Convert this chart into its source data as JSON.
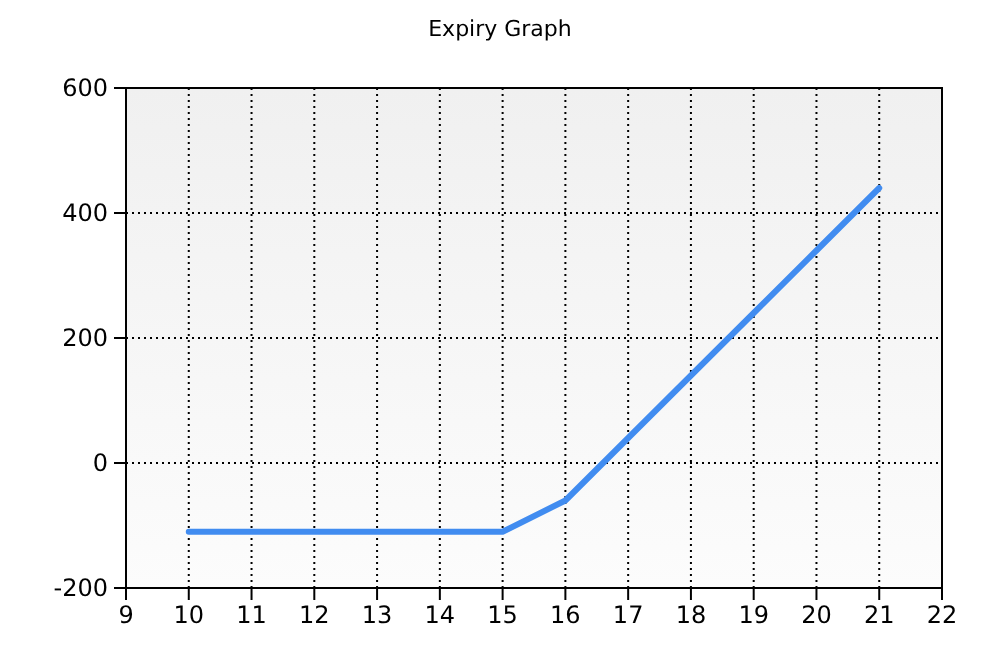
{
  "chart_data": {
    "type": "line",
    "title": "Expiry Graph",
    "x": [
      10,
      11,
      12,
      13,
      14,
      15,
      16,
      17,
      18,
      19,
      20,
      21
    ],
    "series": [
      {
        "color": "#418cf0",
        "values": [
          -110,
          -110,
          -110,
          -110,
          -110,
          -110,
          -60,
          40,
          140,
          240,
          340,
          440
        ]
      }
    ],
    "xlim": [
      9,
      22
    ],
    "xticks": [
      9,
      10,
      11,
      12,
      13,
      14,
      15,
      16,
      17,
      18,
      19,
      20,
      21,
      22
    ],
    "ylim": [
      -200,
      600
    ],
    "yticks": [
      -200,
      0,
      200,
      400,
      600
    ],
    "grid": true,
    "marker": "none",
    "line_style": "solid"
  }
}
